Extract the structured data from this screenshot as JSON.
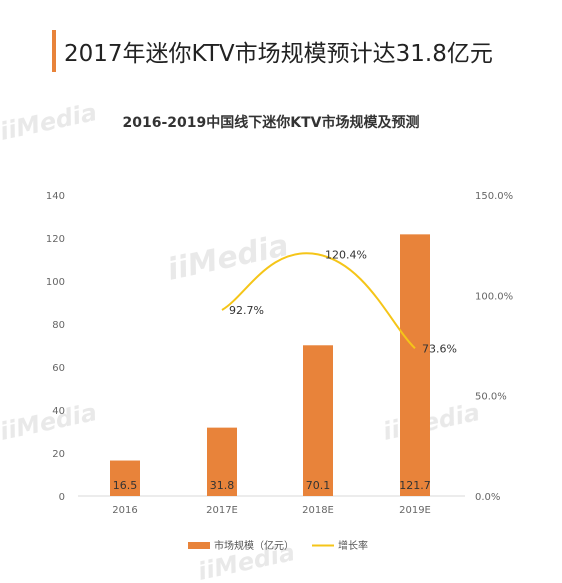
{
  "headline": "2017年迷你KTV市场规模预计达31.8亿元",
  "watermark": "iiMedia",
  "chart_data": {
    "type": "bar",
    "title": "2016-2019中国线下迷你KTV市场规模及预测",
    "categories": [
      "2016",
      "2017E",
      "2018E",
      "2019E"
    ],
    "series": [
      {
        "name": "市场规模（亿元）",
        "type": "bar",
        "axis": "left",
        "color": "#e8833a",
        "values": [
          16.5,
          31.8,
          70.1,
          121.7
        ],
        "labels": [
          "16.5",
          "31.8",
          "70.1",
          "121.7"
        ]
      },
      {
        "name": "增长率",
        "type": "line",
        "axis": "right",
        "color": "#f5c518",
        "values": [
          null,
          92.7,
          120.4,
          73.6
        ],
        "labels": [
          "",
          "92.7%",
          "120.4%",
          "73.6%"
        ]
      }
    ],
    "y_left": {
      "ticks": [
        "0",
        "20",
        "40",
        "60",
        "80",
        "100",
        "120",
        "140"
      ],
      "ylim": [
        0,
        140
      ]
    },
    "y_right": {
      "ticks": [
        "0.0%",
        "50.0%",
        "100.0%",
        "150.0%"
      ],
      "ylim": [
        0,
        150
      ]
    },
    "grid": false,
    "legend_position": "bottom"
  }
}
